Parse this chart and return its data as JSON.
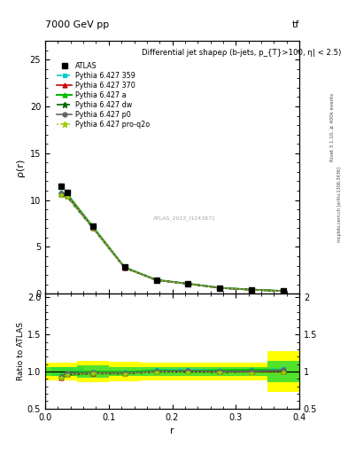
{
  "title_top": "7000 GeV pp",
  "title_top_right": "tf",
  "plot_title": "Differential jet shapeρ (b-jets, p_{T}>100, η| < 2.5)",
  "ylabel_main": "ρ(r)",
  "ylabel_ratio": "Ratio to ATLAS",
  "xlabel": "r",
  "right_label": "Rivet 3.1.10, ≥ 400k events",
  "right_label2": "mcplots.cern.ch [arXiv:1306.3436]",
  "watermark": "ATLAS_2013_I1243871",
  "r_values": [
    0.025,
    0.035,
    0.075,
    0.125,
    0.175,
    0.225,
    0.275,
    0.325,
    0.375
  ],
  "atlas_data": [
    11.5,
    10.8,
    7.2,
    2.85,
    1.45,
    1.05,
    0.62,
    0.42,
    0.28
  ],
  "atlas_err_stat": [
    0.15,
    0.12,
    0.1,
    0.08,
    0.06,
    0.05,
    0.04,
    0.03,
    0.025
  ],
  "pythia_359": [
    10.7,
    10.5,
    7.1,
    2.8,
    1.48,
    1.08,
    0.63,
    0.43,
    0.29
  ],
  "pythia_370": [
    10.6,
    10.4,
    7.05,
    2.78,
    1.46,
    1.06,
    0.62,
    0.42,
    0.28
  ],
  "pythia_a": [
    10.8,
    10.6,
    7.15,
    2.82,
    1.47,
    1.06,
    0.63,
    0.43,
    0.285
  ],
  "pythia_dw": [
    10.5,
    10.3,
    7.0,
    2.76,
    1.44,
    1.05,
    0.61,
    0.42,
    0.28
  ],
  "pythia_p0": [
    10.7,
    10.5,
    7.08,
    2.79,
    1.45,
    1.06,
    0.62,
    0.42,
    0.285
  ],
  "pythia_proq2o": [
    10.55,
    10.35,
    7.0,
    2.76,
    1.44,
    1.04,
    0.61,
    0.41,
    0.275
  ],
  "ratio_359": [
    0.93,
    0.972,
    0.986,
    0.982,
    1.021,
    1.029,
    1.016,
    1.024,
    1.036
  ],
  "ratio_370": [
    0.922,
    0.963,
    0.979,
    0.975,
    1.007,
    1.01,
    1.0,
    1.0,
    1.0
  ],
  "ratio_a": [
    0.939,
    0.981,
    0.993,
    0.989,
    1.014,
    1.01,
    1.016,
    1.024,
    1.018
  ],
  "ratio_dw": [
    0.913,
    0.954,
    0.972,
    0.968,
    0.993,
    1.0,
    0.984,
    1.0,
    1.0
  ],
  "ratio_p0": [
    0.93,
    0.972,
    0.983,
    0.979,
    1.0,
    1.01,
    1.0,
    1.0,
    1.018
  ],
  "ratio_proq2o": [
    0.917,
    0.958,
    0.972,
    0.968,
    0.993,
    0.99,
    0.984,
    0.976,
    0.982
  ],
  "band_yellow_lo": [
    0.88,
    0.88,
    0.86,
    0.87,
    0.875,
    0.875,
    0.875,
    0.875,
    0.72
  ],
  "band_yellow_hi": [
    1.12,
    1.12,
    1.14,
    1.13,
    1.125,
    1.125,
    1.125,
    1.125,
    1.28
  ],
  "band_green_lo": [
    0.94,
    0.94,
    0.92,
    0.935,
    0.94,
    0.94,
    0.94,
    0.945,
    0.86
  ],
  "band_green_hi": [
    1.06,
    1.06,
    1.08,
    1.065,
    1.06,
    1.06,
    1.06,
    1.055,
    1.14
  ],
  "color_359": "#00CCCC",
  "color_370": "#CC0000",
  "color_a": "#00BB00",
  "color_dw": "#006600",
  "color_p0": "#666666",
  "color_proq2o": "#99CC00",
  "ylim_main": [
    0,
    27
  ],
  "ylim_ratio": [
    0.5,
    2.05
  ],
  "xlim": [
    0.0,
    0.4
  ],
  "yticks_main": [
    0,
    5,
    10,
    15,
    20,
    25
  ],
  "yticks_ratio": [
    0.5,
    1.0,
    1.5,
    2.0
  ],
  "xticks": [
    0.0,
    0.1,
    0.2,
    0.3,
    0.4
  ]
}
